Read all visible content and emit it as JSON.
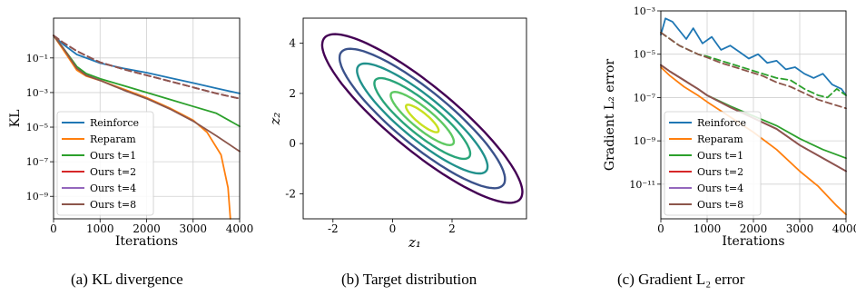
{
  "captions": {
    "a": "(a) KL divergence",
    "b": "(b) Target distribution",
    "c": "(c) Gradient L₂ error"
  },
  "chart_data": [
    {
      "id": "kl",
      "type": "line",
      "xlabel": "Iterations",
      "ylabel": "KL",
      "xlim": [
        0,
        4000
      ],
      "ylim_log10": [
        -10.3,
        1.3
      ],
      "xticks": [
        "0",
        "1000",
        "2000",
        "3000",
        "4000"
      ],
      "yticks": [
        "10⁻¹",
        "10⁻³",
        "10⁻⁵",
        "10⁻⁷",
        "10⁻⁹"
      ],
      "ytick_exponents": [
        -1,
        -3,
        -5,
        -7,
        -9
      ],
      "grid": true,
      "legend": "bottom-left",
      "series": [
        {
          "name": "Reinforce",
          "color": "#1f77b4",
          "dashed": false,
          "x": [
            0,
            200,
            500,
            1000,
            1500,
            2000,
            2500,
            3000,
            3500,
            4000
          ],
          "log10_y": [
            0.3,
            -0.2,
            -0.8,
            -1.3,
            -1.6,
            -1.85,
            -2.15,
            -2.45,
            -2.75,
            -3.05
          ]
        },
        {
          "name": "Reparam",
          "color": "#ff7f0e",
          "dashed": false,
          "x": [
            0,
            200,
            500,
            700,
            1000,
            1500,
            2000,
            2500,
            3000,
            3300,
            3600,
            3750,
            3800
          ],
          "log10_y": [
            0.3,
            -0.5,
            -1.7,
            -2.05,
            -2.3,
            -2.8,
            -3.3,
            -3.9,
            -4.6,
            -5.3,
            -6.6,
            -8.5,
            -10.3
          ]
        },
        {
          "name": "Ours t=1",
          "color": "#2ca02c",
          "dashed": false,
          "x": [
            0,
            200,
            500,
            700,
            1000,
            1500,
            2000,
            2500,
            3000,
            3500,
            4000
          ],
          "log10_y": [
            0.3,
            -0.4,
            -1.5,
            -1.9,
            -2.2,
            -2.6,
            -3.0,
            -3.4,
            -3.8,
            -4.2,
            -4.95
          ]
        },
        {
          "name": "Ours t=2",
          "color": "#d62728",
          "dashed": true,
          "x": [
            0,
            200,
            500,
            800,
            1000,
            1500,
            2000,
            2500,
            3000,
            3500,
            4000
          ],
          "log10_y": [
            0.3,
            -0.1,
            -0.6,
            -1.0,
            -1.25,
            -1.65,
            -2.0,
            -2.35,
            -2.7,
            -3.05,
            -3.35
          ]
        },
        {
          "name": "Ours t=4",
          "color": "#9467bd",
          "dashed": true,
          "x": [
            0,
            200,
            500,
            800,
            1000,
            1500,
            2000,
            2500,
            3000,
            3500,
            4000
          ],
          "log10_y": [
            0.3,
            -0.1,
            -0.6,
            -1.0,
            -1.25,
            -1.65,
            -2.0,
            -2.35,
            -2.7,
            -3.05,
            -3.35
          ]
        },
        {
          "name": "Ours t=8",
          "color": "#8c564b",
          "dashed": false,
          "x": [
            0,
            200,
            500,
            700,
            1000,
            1500,
            2000,
            2500,
            3000,
            3500,
            4000
          ],
          "log10_y": [
            0.3,
            -0.4,
            -1.6,
            -2.0,
            -2.3,
            -2.85,
            -3.35,
            -3.95,
            -4.65,
            -5.5,
            -6.4
          ]
        },
        {
          "name": "",
          "color": "#8c564b",
          "dashed": true,
          "x": [
            0,
            200,
            500,
            800,
            1000,
            1500,
            2000,
            2500,
            3000,
            3500,
            4000
          ],
          "log10_y": [
            0.3,
            -0.1,
            -0.6,
            -1.0,
            -1.25,
            -1.65,
            -2.0,
            -2.35,
            -2.7,
            -3.05,
            -3.35
          ]
        }
      ]
    },
    {
      "id": "target",
      "type": "contour",
      "xlabel": "z₁",
      "ylabel": "z₂",
      "xlim": [
        -3,
        4.5
      ],
      "ylim": [
        -3,
        5
      ],
      "xticks": [
        -2,
        0,
        2
      ],
      "xtick_labels": [
        "-2",
        "0",
        "2"
      ],
      "yticks": [
        -2,
        0,
        2,
        4
      ],
      "ytick_labels": [
        "-2",
        "0",
        "2",
        "4"
      ],
      "grid": false,
      "contours": {
        "center": [
          1.0,
          1.0
        ],
        "angle_deg": -45,
        "major_radius": [
          4.6,
          3.8,
          3.0,
          2.2,
          1.45,
          0.75
        ],
        "minor_radius": [
          1.2,
          1.0,
          0.78,
          0.58,
          0.38,
          0.2
        ],
        "colors": [
          "#440154",
          "#3b528b",
          "#21918c",
          "#2aa57a",
          "#5ec962",
          "#c8e020"
        ]
      }
    },
    {
      "id": "grad",
      "type": "line",
      "xlabel": "Iterations",
      "ylabel": "Gradient L₂ error",
      "xlim": [
        0,
        4000
      ],
      "ylim_log10": [
        -12.6,
        -3.0
      ],
      "xticks": [
        "0",
        "1000",
        "2000",
        "3000",
        "4000"
      ],
      "yticks": [
        "10⁻³",
        "10⁻⁵",
        "10⁻⁷",
        "10⁻⁹",
        "10⁻¹¹"
      ],
      "ytick_exponents": [
        -3,
        -5,
        -7,
        -9,
        -11
      ],
      "grid": true,
      "legend": "bottom-left",
      "series": [
        {
          "name": "Reinforce",
          "color": "#1f77b4",
          "dashed": false,
          "x": [
            0,
            100,
            250,
            400,
            550,
            700,
            900,
            1100,
            1300,
            1500,
            1700,
            1900,
            2100,
            2300,
            2500,
            2700,
            2900,
            3100,
            3300,
            3500,
            3700,
            3900,
            4000
          ],
          "log10_y": [
            -4.1,
            -3.35,
            -3.5,
            -3.9,
            -4.3,
            -3.8,
            -4.5,
            -4.2,
            -4.8,
            -4.6,
            -4.9,
            -5.2,
            -5.0,
            -5.4,
            -5.3,
            -5.7,
            -5.6,
            -5.9,
            -6.1,
            -5.9,
            -6.4,
            -6.6,
            -6.9
          ]
        },
        {
          "name": "Reparam",
          "color": "#ff7f0e",
          "dashed": false,
          "x": [
            0,
            200,
            500,
            800,
            1000,
            1500,
            2000,
            2500,
            3000,
            3400,
            3800,
            4000
          ],
          "log10_y": [
            -5.6,
            -6.0,
            -6.5,
            -6.9,
            -7.2,
            -7.9,
            -8.6,
            -9.4,
            -10.4,
            -11.1,
            -12.0,
            -12.4
          ]
        },
        {
          "name": "Ours t=1",
          "color": "#2ca02c",
          "dashed": false,
          "x": [
            0,
            200,
            500,
            800,
            1000,
            1500,
            2000,
            2500,
            3000,
            3500,
            4000
          ],
          "log10_y": [
            -5.5,
            -5.8,
            -6.2,
            -6.6,
            -6.9,
            -7.4,
            -7.85,
            -8.3,
            -8.9,
            -9.4,
            -9.8
          ]
        },
        {
          "name": "Ours t=2",
          "color": "#d62728",
          "dashed": false,
          "x": [
            0,
            200,
            500,
            800,
            1000,
            1500,
            2000,
            2500,
            3000,
            3500,
            4000
          ],
          "log10_y": [
            -5.5,
            -5.8,
            -6.2,
            -6.6,
            -6.9,
            -7.45,
            -7.95,
            -8.45,
            -9.2,
            -9.8,
            -10.4
          ]
        },
        {
          "name": "Ours t=4",
          "color": "#9467bd",
          "dashed": false,
          "x": [
            0,
            200,
            500,
            800,
            1000,
            1500,
            2000,
            2500,
            3000,
            3500,
            4000
          ],
          "log10_y": [
            -5.5,
            -5.8,
            -6.2,
            -6.6,
            -6.9,
            -7.45,
            -7.95,
            -8.45,
            -9.2,
            -9.8,
            -10.4
          ]
        },
        {
          "name": "Ours t=8",
          "color": "#8c564b",
          "dashed": false,
          "x": [
            0,
            200,
            500,
            800,
            1000,
            1500,
            2000,
            2500,
            3000,
            3500,
            4000
          ],
          "log10_y": [
            -5.5,
            -5.8,
            -6.2,
            -6.6,
            -6.9,
            -7.45,
            -7.95,
            -8.45,
            -9.2,
            -9.8,
            -10.4
          ]
        },
        {
          "name": "",
          "color": "#2ca02c",
          "dashed": true,
          "x": [
            0,
            200,
            400,
            600,
            800,
            1000,
            1300,
            1600,
            1900,
            2200,
            2500,
            2800,
            3100,
            3400,
            3600,
            3800,
            4000
          ],
          "log10_y": [
            -4.0,
            -4.3,
            -4.6,
            -4.8,
            -5.0,
            -5.1,
            -5.3,
            -5.5,
            -5.7,
            -5.9,
            -6.1,
            -6.2,
            -6.6,
            -6.9,
            -7.0,
            -6.6,
            -6.9
          ]
        },
        {
          "name": "",
          "color": "#8c564b",
          "dashed": true,
          "x": [
            0,
            200,
            400,
            600,
            800,
            1000,
            1300,
            1600,
            1900,
            2200,
            2500,
            2800,
            3100,
            3400,
            3700,
            4000
          ],
          "log10_y": [
            -4.0,
            -4.3,
            -4.6,
            -4.8,
            -5.0,
            -5.15,
            -5.4,
            -5.6,
            -5.8,
            -6.0,
            -6.3,
            -6.5,
            -6.8,
            -7.1,
            -7.3,
            -7.5
          ]
        }
      ]
    }
  ]
}
